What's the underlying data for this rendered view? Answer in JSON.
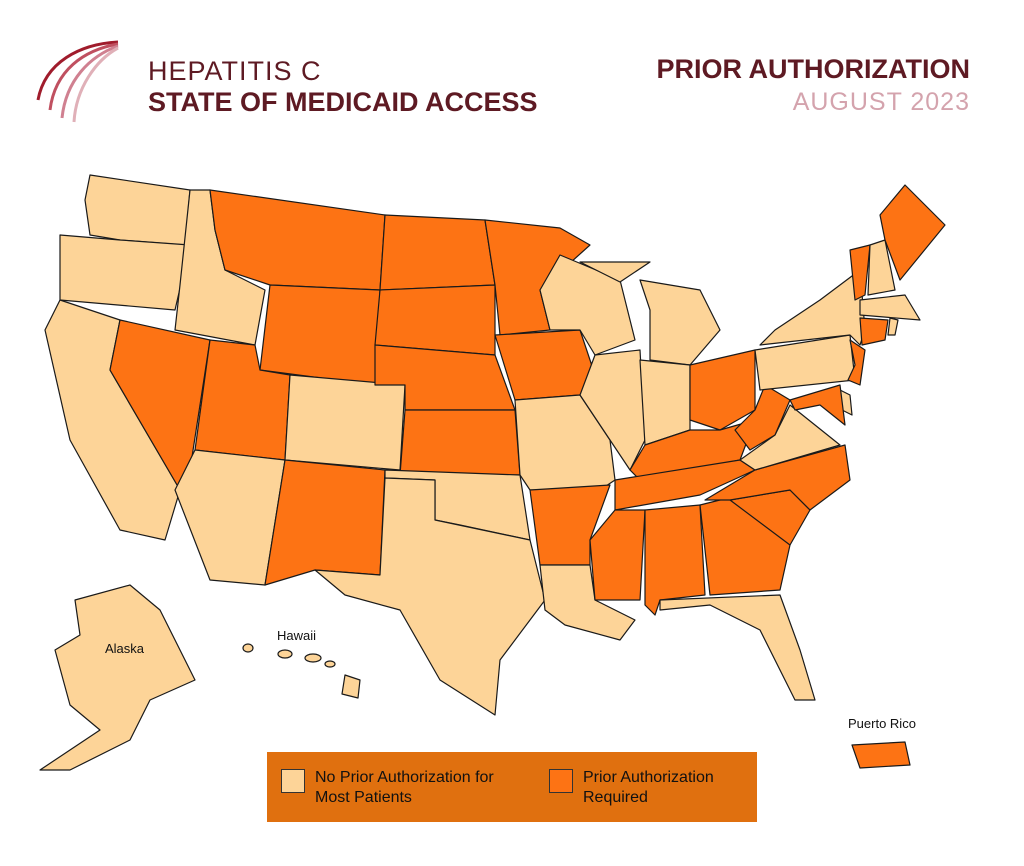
{
  "header": {
    "title_line1": "HEPATITIS C",
    "title_line2": "STATE OF MEDICAID ACCESS",
    "topic": "PRIOR AUTHORIZATION",
    "date": "AUGUST 2023"
  },
  "map": {
    "labels": [
      "Alaska",
      "Hawaii",
      "Puerto Rico"
    ]
  },
  "legend": {
    "items": [
      {
        "label": "No Prior Authorization for Most Patients",
        "color": "#fdd498"
      },
      {
        "label": "Prior Authorization Required",
        "color": "#fd7314"
      }
    ]
  }
}
